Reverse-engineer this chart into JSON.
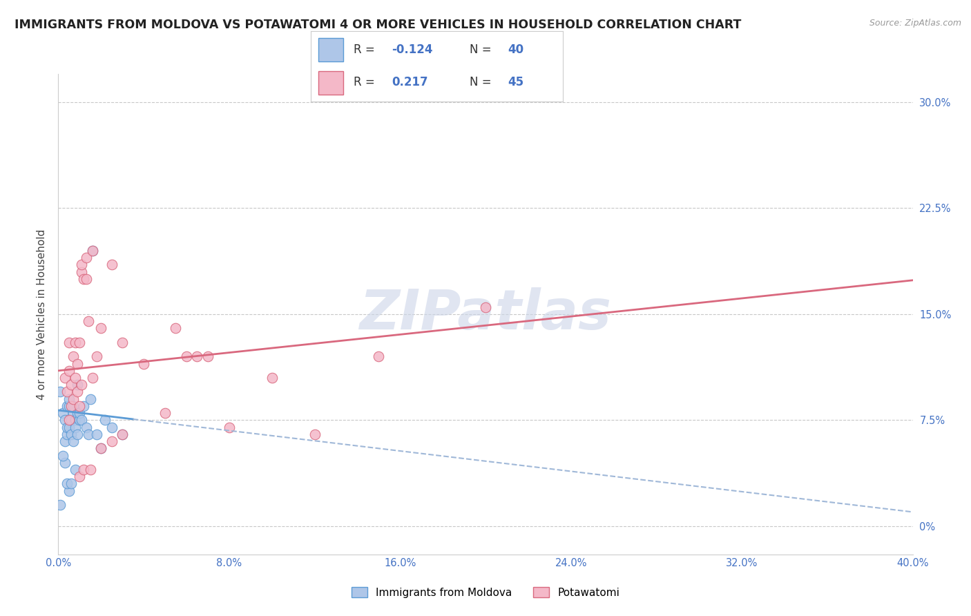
{
  "title": "IMMIGRANTS FROM MOLDOVA VS POTAWATOMI 4 OR MORE VEHICLES IN HOUSEHOLD CORRELATION CHART",
  "source": "Source: ZipAtlas.com",
  "ylabel": "4 or more Vehicles in Household",
  "watermark": "ZIPatlas",
  "blue_r": -0.124,
  "blue_n": 40,
  "pink_r": 0.217,
  "pink_n": 45,
  "xlim": [
    0.0,
    40.0
  ],
  "ylim": [
    -2.0,
    32.0
  ],
  "xticks": [
    0.0,
    8.0,
    16.0,
    24.0,
    32.0,
    40.0
  ],
  "xtick_labels": [
    "0.0%",
    "8.0%",
    "16.0%",
    "24.0%",
    "32.0%",
    "40.0%"
  ],
  "ytick_positions": [
    0.0,
    7.5,
    15.0,
    22.5,
    30.0
  ],
  "ytick_labels": [
    "0%",
    "7.5%",
    "15.0%",
    "22.5%",
    "30.0%"
  ],
  "blue_scatter": [
    [
      0.1,
      9.5
    ],
    [
      0.2,
      8.0
    ],
    [
      0.3,
      6.0
    ],
    [
      0.3,
      7.5
    ],
    [
      0.4,
      8.5
    ],
    [
      0.4,
      6.5
    ],
    [
      0.4,
      7.0
    ],
    [
      0.5,
      8.5
    ],
    [
      0.5,
      7.0
    ],
    [
      0.5,
      9.0
    ],
    [
      0.6,
      7.5
    ],
    [
      0.6,
      6.5
    ],
    [
      0.7,
      8.0
    ],
    [
      0.7,
      8.5
    ],
    [
      0.7,
      6.0
    ],
    [
      0.8,
      7.5
    ],
    [
      0.8,
      7.0
    ],
    [
      0.9,
      6.5
    ],
    [
      0.9,
      10.0
    ],
    [
      0.9,
      8.0
    ],
    [
      1.0,
      7.5
    ],
    [
      1.0,
      8.0
    ],
    [
      1.1,
      7.5
    ],
    [
      1.2,
      8.5
    ],
    [
      1.3,
      7.0
    ],
    [
      1.4,
      6.5
    ],
    [
      1.5,
      9.0
    ],
    [
      1.6,
      19.5
    ],
    [
      1.8,
      6.5
    ],
    [
      2.0,
      5.5
    ],
    [
      2.2,
      7.5
    ],
    [
      2.5,
      7.0
    ],
    [
      3.0,
      6.5
    ],
    [
      0.5,
      2.5
    ],
    [
      0.4,
      3.0
    ],
    [
      0.3,
      4.5
    ],
    [
      0.2,
      5.0
    ],
    [
      0.1,
      1.5
    ],
    [
      0.8,
      4.0
    ],
    [
      0.6,
      3.0
    ]
  ],
  "pink_scatter": [
    [
      0.3,
      10.5
    ],
    [
      0.4,
      9.5
    ],
    [
      0.5,
      11.0
    ],
    [
      0.5,
      13.0
    ],
    [
      0.6,
      8.5
    ],
    [
      0.6,
      10.0
    ],
    [
      0.7,
      9.0
    ],
    [
      0.7,
      12.0
    ],
    [
      0.8,
      13.0
    ],
    [
      0.8,
      10.5
    ],
    [
      0.9,
      9.5
    ],
    [
      0.9,
      11.5
    ],
    [
      1.0,
      13.0
    ],
    [
      1.0,
      8.5
    ],
    [
      1.1,
      10.0
    ],
    [
      1.1,
      18.0
    ],
    [
      1.1,
      18.5
    ],
    [
      1.2,
      17.5
    ],
    [
      1.3,
      17.5
    ],
    [
      1.3,
      19.0
    ],
    [
      1.4,
      14.5
    ],
    [
      1.6,
      10.5
    ],
    [
      1.6,
      19.5
    ],
    [
      1.8,
      12.0
    ],
    [
      2.0,
      14.0
    ],
    [
      2.5,
      18.5
    ],
    [
      3.0,
      13.0
    ],
    [
      4.0,
      11.5
    ],
    [
      5.5,
      14.0
    ],
    [
      6.0,
      12.0
    ],
    [
      6.5,
      12.0
    ],
    [
      7.0,
      12.0
    ],
    [
      1.0,
      3.5
    ],
    [
      1.2,
      4.0
    ],
    [
      1.5,
      4.0
    ],
    [
      2.0,
      5.5
    ],
    [
      2.5,
      6.0
    ],
    [
      10.0,
      10.5
    ],
    [
      15.0,
      12.0
    ],
    [
      20.0,
      15.5
    ],
    [
      12.0,
      6.5
    ],
    [
      8.0,
      7.0
    ],
    [
      5.0,
      8.0
    ],
    [
      3.0,
      6.5
    ],
    [
      0.5,
      7.5
    ]
  ],
  "blue_solid_end": 3.5,
  "blue_line_intercept": 8.2,
  "blue_line_slope": -0.18,
  "pink_line_intercept": 11.0,
  "pink_line_slope": 0.16,
  "blue_color": "#aec6e8",
  "blue_line_color": "#5b9bd5",
  "blue_dash_color": "#a0b8d8",
  "pink_color": "#f4b8c8",
  "pink_line_color": "#d9687e",
  "grid_color": "#c8c8c8",
  "background_color": "#ffffff",
  "title_fontsize": 12.5,
  "axis_label_fontsize": 11,
  "tick_fontsize": 10.5,
  "watermark_color": "#ccd5e8",
  "legend_bottom_labels": [
    "Immigrants from Moldova",
    "Potawatomi"
  ]
}
